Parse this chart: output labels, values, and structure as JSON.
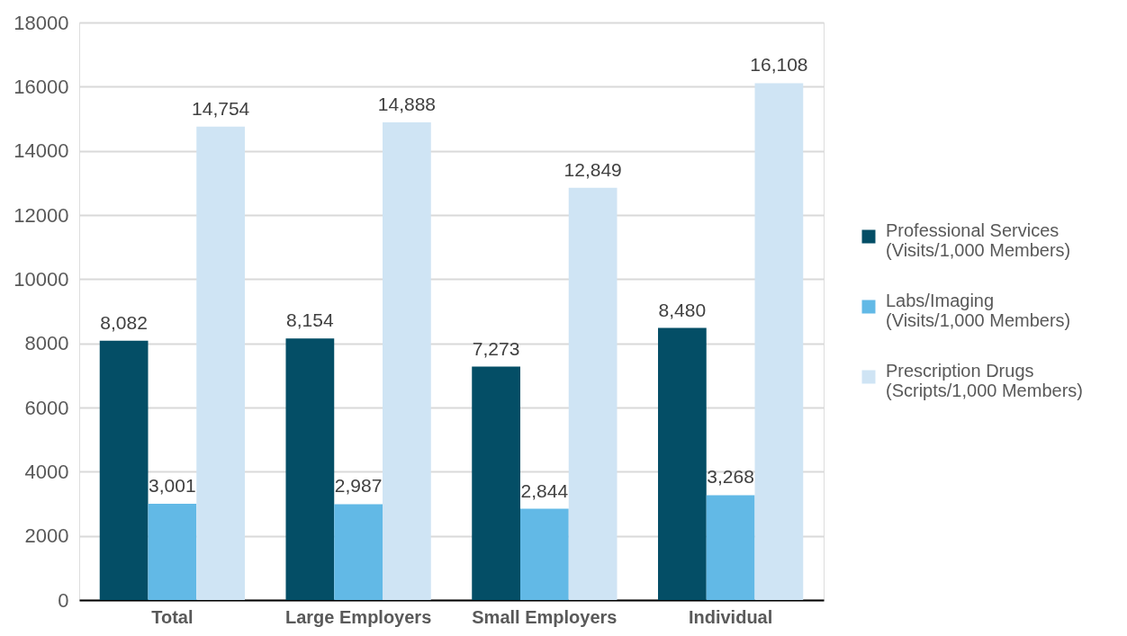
{
  "chart_data": {
    "type": "bar",
    "categories": [
      "Total",
      "Large Employers",
      "Small Employers",
      "Individual"
    ],
    "series": [
      {
        "name": "Professional Services\n(Visits/1,000 Members)",
        "color": "#044e66",
        "values": [
          8082,
          8154,
          7273,
          8480
        ],
        "value_labels": [
          "8,082",
          "8,154",
          "7,273",
          "8,480"
        ]
      },
      {
        "name": "Labs/Imaging\n(Visits/1,000 Members)",
        "color": "#62b9e6",
        "values": [
          3001,
          2987,
          2844,
          3268
        ],
        "value_labels": [
          "3,001",
          "2,987",
          "2,844",
          "3,268"
        ]
      },
      {
        "name": "Prescription Drugs\n(Scripts/1,000 Members)",
        "color": "#cfe4f4",
        "values": [
          14754,
          14888,
          12849,
          16108
        ],
        "value_labels": [
          "14,754",
          "14,888",
          "12,849",
          "16,108"
        ]
      }
    ],
    "ylim": [
      0,
      18000
    ],
    "yticks": [
      0,
      2000,
      4000,
      6000,
      8000,
      10000,
      12000,
      14000,
      16000,
      18000
    ],
    "grid": "y",
    "legend": "right"
  }
}
